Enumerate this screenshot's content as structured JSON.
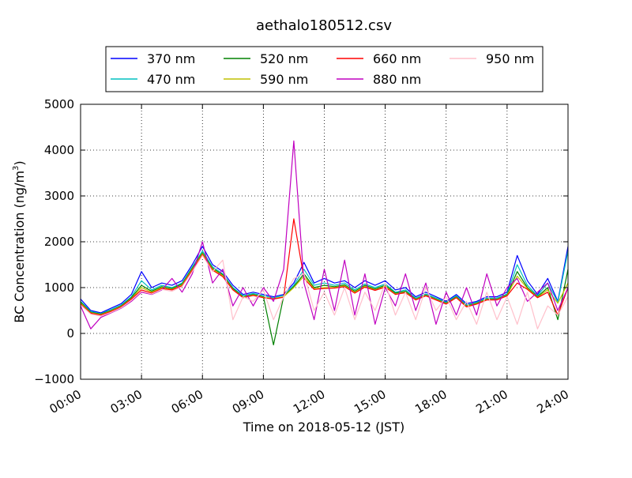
{
  "chart_data": {
    "type": "line",
    "title": "aethalo180512.csv",
    "xlabel": "Time on 2018-05-12 (JST)",
    "ylabel_main": "BC Concentration (ng/m",
    "ylabel_sup": "3",
    "ylabel_close": ")",
    "xlim_hours": [
      0,
      24
    ],
    "ylim": [
      -1000,
      5000
    ],
    "xticks": [
      "00:00",
      "03:00",
      "06:00",
      "09:00",
      "12:00",
      "15:00",
      "18:00",
      "21:00",
      "24:00"
    ],
    "yticks": [
      "−1000",
      "0",
      "1000",
      "2000",
      "3000",
      "4000",
      "5000"
    ],
    "grid": true,
    "legend_position": "top (above plot)",
    "x_hours": [
      0.0,
      0.5,
      1.0,
      1.5,
      2.0,
      2.5,
      3.0,
      3.5,
      4.0,
      4.5,
      5.0,
      5.5,
      6.0,
      6.5,
      7.0,
      7.5,
      8.0,
      8.5,
      9.0,
      9.5,
      10.0,
      10.5,
      11.0,
      11.5,
      12.0,
      12.5,
      13.0,
      13.5,
      14.0,
      14.5,
      15.0,
      15.5,
      16.0,
      16.5,
      17.0,
      17.5,
      18.0,
      18.5,
      19.0,
      19.5,
      20.0,
      20.5,
      21.0,
      21.5,
      22.0,
      22.5,
      23.0,
      23.5,
      24.0
    ],
    "series": [
      {
        "name": "370 nm",
        "color": "#0000ff",
        "values": [
          750,
          500,
          450,
          550,
          650,
          850,
          1350,
          1000,
          1100,
          1050,
          1150,
          1500,
          1900,
          1500,
          1350,
          1050,
          850,
          900,
          850,
          800,
          850,
          1100,
          1550,
          1100,
          1200,
          1100,
          1150,
          1000,
          1150,
          1050,
          1150,
          950,
          1000,
          800,
          900,
          800,
          700,
          850,
          650,
          700,
          800,
          800,
          900,
          1700,
          1150,
          850,
          1200,
          700,
          1900
        ]
      },
      {
        "name": "470 nm",
        "color": "#00c0c0",
        "values": [
          700,
          480,
          430,
          520,
          620,
          800,
          1150,
          950,
          1050,
          1000,
          1100,
          1450,
          1800,
          1450,
          1300,
          1000,
          820,
          870,
          820,
          780,
          830,
          1050,
          1400,
          1050,
          1100,
          1050,
          1100,
          950,
          1080,
          1000,
          1080,
          900,
          950,
          770,
          860,
          770,
          680,
          820,
          620,
          680,
          770,
          770,
          860,
          1500,
          1050,
          820,
          1100,
          680,
          1800
        ]
      },
      {
        "name": "520 nm",
        "color": "#008000",
        "values": [
          680,
          460,
          420,
          500,
          600,
          780,
          1050,
          920,
          1020,
          980,
          1080,
          1420,
          1760,
          1420,
          1280,
          980,
          800,
          850,
          800,
          -250,
          810,
          1020,
          1300,
          1000,
          1050,
          1020,
          1060,
          920,
          1050,
          970,
          1050,
          880,
          920,
          750,
          840,
          750,
          660,
          800,
          600,
          660,
          750,
          750,
          840,
          1350,
          1000,
          800,
          1000,
          300,
          1400
        ]
      },
      {
        "name": "590 nm",
        "color": "#c0c000",
        "values": [
          660,
          450,
          410,
          490,
          590,
          760,
          1000,
          900,
          1000,
          960,
          1060,
          1400,
          1740,
          1400,
          1260,
          960,
          790,
          840,
          790,
          760,
          800,
          1000,
          1250,
          980,
          1000,
          1000,
          1040,
          900,
          1030,
          950,
          1030,
          860,
          900,
          740,
          830,
          740,
          650,
          790,
          590,
          650,
          740,
          740,
          830,
          1250,
          980,
          790,
          950,
          660,
          1100
        ]
      },
      {
        "name": "660 nm",
        "color": "#ff0000",
        "values": [
          640,
          440,
          400,
          480,
          580,
          750,
          950,
          880,
          980,
          950,
          1040,
          1380,
          1720,
          1380,
          1240,
          950,
          780,
          830,
          780,
          750,
          790,
          2500,
          1200,
          960,
          980,
          990,
          1020,
          880,
          1010,
          940,
          1010,
          850,
          890,
          730,
          820,
          730,
          640,
          780,
          580,
          640,
          730,
          730,
          820,
          1100,
          960,
          780,
          900,
          400,
          1000
        ]
      },
      {
        "name": "880 nm",
        "color": "#c000c0",
        "values": [
          600,
          100,
          350,
          450,
          550,
          700,
          900,
          850,
          950,
          1200,
          900,
          1300,
          2000,
          1100,
          1400,
          600,
          1000,
          600,
          1000,
          700,
          1400,
          4200,
          1100,
          300,
          1400,
          500,
          1600,
          400,
          1300,
          200,
          1000,
          600,
          1300,
          500,
          1100,
          200,
          900,
          400,
          1000,
          400,
          1300,
          600,
          1000,
          1200,
          700,
          900,
          1100,
          500,
          1000
        ]
      },
      {
        "name": "950 nm",
        "color": "#ffc0cb",
        "values": [
          620,
          420,
          380,
          460,
          560,
          720,
          920,
          860,
          960,
          920,
          1020,
          1350,
          1700,
          1350,
          1600,
          300,
          800,
          700,
          950,
          300,
          800,
          1200,
          1300,
          500,
          900,
          400,
          1000,
          300,
          900,
          500,
          1100,
          400,
          900,
          300,
          1000,
          500,
          800,
          300,
          700,
          200,
          900,
          300,
          800,
          200,
          900,
          100,
          600,
          400,
          800
        ]
      }
    ]
  }
}
